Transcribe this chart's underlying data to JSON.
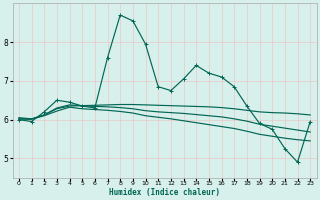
{
  "xlabel": "Humidex (Indice chaleur)",
  "bg_color": "#d8f0ec",
  "grid_color": "#e8c8c8",
  "line_color": "#006655",
  "xlim": [
    -0.5,
    23.5
  ],
  "ylim": [
    4.5,
    9.0
  ],
  "yticks": [
    5,
    6,
    7,
    8
  ],
  "xticks": [
    0,
    1,
    2,
    3,
    4,
    5,
    6,
    7,
    8,
    9,
    10,
    11,
    12,
    13,
    14,
    15,
    16,
    17,
    18,
    19,
    20,
    21,
    22,
    23
  ],
  "line1_x": [
    0,
    1,
    2,
    3,
    4,
    5,
    6,
    7,
    8,
    9,
    10,
    11,
    12,
    13,
    14,
    15,
    16,
    17,
    18,
    19,
    20,
    21,
    22,
    23
  ],
  "line1_y": [
    6.0,
    5.95,
    6.2,
    6.5,
    6.45,
    6.35,
    6.3,
    7.6,
    8.7,
    8.55,
    7.95,
    6.85,
    6.75,
    7.05,
    7.4,
    7.2,
    7.1,
    6.85,
    6.35,
    5.9,
    5.75,
    5.25,
    4.9,
    5.95
  ],
  "line2_x": [
    0,
    1,
    2,
    3,
    4,
    5,
    6,
    7,
    8,
    9,
    10,
    11,
    12,
    13,
    14,
    15,
    16,
    17,
    18,
    19,
    20,
    21,
    22,
    23
  ],
  "line2_y": [
    6.05,
    6.02,
    6.12,
    6.28,
    6.35,
    6.36,
    6.37,
    6.38,
    6.39,
    6.39,
    6.38,
    6.37,
    6.36,
    6.35,
    6.34,
    6.33,
    6.31,
    6.28,
    6.24,
    6.2,
    6.18,
    6.17,
    6.15,
    6.12
  ],
  "line3_x": [
    0,
    1,
    2,
    3,
    4,
    5,
    6,
    7,
    8,
    9,
    10,
    11,
    12,
    13,
    14,
    15,
    16,
    17,
    18,
    19,
    20,
    21,
    22,
    23
  ],
  "line3_y": [
    6.02,
    6.01,
    6.12,
    6.3,
    6.38,
    6.36,
    6.34,
    6.33,
    6.31,
    6.28,
    6.23,
    6.2,
    6.18,
    6.16,
    6.13,
    6.1,
    6.07,
    6.02,
    5.96,
    5.88,
    5.83,
    5.78,
    5.73,
    5.68
  ],
  "line4_x": [
    0,
    1,
    2,
    3,
    4,
    5,
    6,
    7,
    8,
    9,
    10,
    11,
    12,
    13,
    14,
    15,
    16,
    17,
    18,
    19,
    20,
    21,
    22,
    23
  ],
  "line4_y": [
    6.02,
    6.01,
    6.1,
    6.22,
    6.32,
    6.28,
    6.26,
    6.24,
    6.21,
    6.17,
    6.1,
    6.06,
    6.02,
    5.97,
    5.92,
    5.87,
    5.82,
    5.77,
    5.7,
    5.62,
    5.57,
    5.52,
    5.48,
    5.45
  ]
}
